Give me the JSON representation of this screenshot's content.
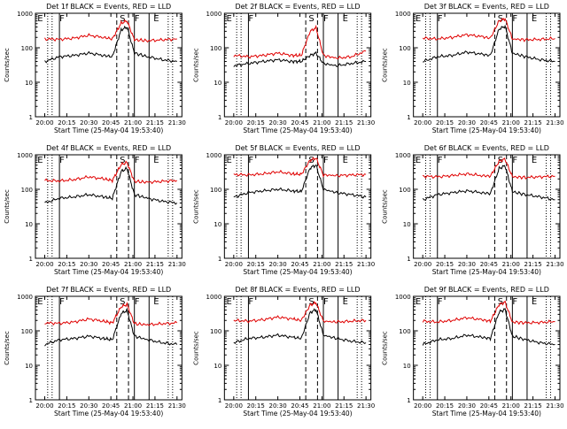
{
  "chart_data": [
    {
      "type": "line",
      "title": "Det 1f BLACK = Events, RED = LLD",
      "xlabel": "Start Time (25-May-04 19:53:40)",
      "ylabel": "Counts/sec",
      "x_ticks": [
        "20:00",
        "20:15",
        "20:30",
        "20:45",
        "21:00",
        "21:15",
        "21:30"
      ],
      "y_ticks": [
        "1",
        "10",
        "100",
        "1000"
      ],
      "scale_y": "log",
      "ylim": [
        1,
        1000
      ],
      "xlim": [
        "19:53:40",
        "21:33:20"
      ],
      "markers": [
        "E",
        "F",
        "S",
        "F",
        "E"
      ],
      "series": [
        {
          "name": "RED = LLD",
          "color": "#e00000",
          "x": [
            "20:00",
            "20:10",
            "20:20",
            "20:30",
            "20:40",
            "20:46",
            "20:52",
            "20:56",
            "21:01",
            "21:10",
            "21:20",
            "21:30"
          ],
          "y": [
            180,
            175,
            190,
            230,
            200,
            180,
            520,
            600,
            170,
            160,
            170,
            180
          ]
        },
        {
          "name": "BLACK = Events",
          "color": "#000000",
          "x": [
            "20:00",
            "20:10",
            "20:20",
            "20:30",
            "20:40",
            "20:46",
            "20:52",
            "20:56",
            "21:01",
            "21:10",
            "21:20",
            "21:30"
          ],
          "y": [
            40,
            55,
            60,
            70,
            60,
            55,
            330,
            400,
            70,
            55,
            45,
            40
          ]
        }
      ]
    },
    {
      "type": "line",
      "title": "Det 2f BLACK = Events, RED = LLD",
      "xlabel": "Start Time (25-May-04 19:53:40)",
      "ylabel": "Counts/sec",
      "x_ticks": [
        "20:00",
        "20:15",
        "20:30",
        "20:45",
        "21:00",
        "21:15",
        "21:30"
      ],
      "y_ticks": [
        "1",
        "10",
        "100",
        "1000"
      ],
      "scale_y": "log",
      "ylim": [
        1,
        1000
      ],
      "xlim": [
        "19:53:40",
        "21:33:20"
      ],
      "markers": [
        "E",
        "F",
        "S",
        "F",
        "E"
      ],
      "series": [
        {
          "name": "RED = LLD",
          "color": "#e00000",
          "x": [
            "20:00",
            "20:10",
            "20:20",
            "20:30",
            "20:40",
            "20:46",
            "20:52",
            "20:56",
            "21:01",
            "21:10",
            "21:20",
            "21:30"
          ],
          "y": [
            60,
            55,
            60,
            70,
            60,
            60,
            300,
            380,
            60,
            50,
            55,
            80
          ]
        },
        {
          "name": "BLACK = Events",
          "color": "#000000",
          "x": [
            "20:00",
            "20:10",
            "20:20",
            "20:30",
            "20:40",
            "20:46",
            "20:52",
            "20:56",
            "21:01",
            "21:10",
            "21:20",
            "21:30"
          ],
          "y": [
            30,
            35,
            40,
            45,
            40,
            40,
            60,
            70,
            35,
            30,
            35,
            40
          ]
        }
      ]
    },
    {
      "type": "line",
      "title": "Det 3f BLACK = Events, RED = LLD",
      "xlabel": "Start Time (25-May-04 19:53:40)",
      "ylabel": "Counts/sec",
      "x_ticks": [
        "20:00",
        "20:15",
        "20:30",
        "20:45",
        "21:00",
        "21:15",
        "21:30"
      ],
      "y_ticks": [
        "1",
        "10",
        "100",
        "1000"
      ],
      "scale_y": "log",
      "ylim": [
        1,
        1000
      ],
      "xlim": [
        "19:53:40",
        "21:33:20"
      ],
      "markers": [
        "E",
        "F",
        "S",
        "F",
        "E"
      ],
      "series": [
        {
          "name": "RED = LLD",
          "color": "#e00000",
          "x": [
            "20:00",
            "20:10",
            "20:20",
            "20:30",
            "20:40",
            "20:46",
            "20:52",
            "20:56",
            "21:01",
            "21:10",
            "21:20",
            "21:30"
          ],
          "y": [
            190,
            180,
            200,
            240,
            210,
            190,
            600,
            700,
            180,
            170,
            175,
            185
          ]
        },
        {
          "name": "BLACK = Events",
          "color": "#000000",
          "x": [
            "20:00",
            "20:10",
            "20:20",
            "20:30",
            "20:40",
            "20:46",
            "20:52",
            "20:56",
            "21:01",
            "21:10",
            "21:20",
            "21:30"
          ],
          "y": [
            40,
            55,
            60,
            75,
            65,
            60,
            350,
            420,
            70,
            55,
            45,
            40
          ]
        }
      ]
    },
    {
      "type": "line",
      "title": "Det 4f BLACK = Events, RED = LLD",
      "xlabel": "Start Time (25-May-04 19:53:40)",
      "ylabel": "Counts/sec",
      "x_ticks": [
        "20:00",
        "20:15",
        "20:30",
        "20:45",
        "21:00",
        "21:15",
        "21:30"
      ],
      "y_ticks": [
        "1",
        "10",
        "100",
        "1000"
      ],
      "scale_y": "log",
      "ylim": [
        1,
        1000
      ],
      "xlim": [
        "19:53:40",
        "21:33:20"
      ],
      "markers": [
        "E",
        "F",
        "S",
        "F",
        "E"
      ],
      "series": [
        {
          "name": "RED = LLD",
          "color": "#e00000",
          "x": [
            "20:00",
            "20:10",
            "20:20",
            "20:30",
            "20:40",
            "20:46",
            "20:52",
            "20:56",
            "21:01",
            "21:10",
            "21:20",
            "21:30"
          ],
          "y": [
            180,
            175,
            190,
            230,
            200,
            180,
            520,
            600,
            170,
            160,
            170,
            180
          ]
        },
        {
          "name": "BLACK = Events",
          "color": "#000000",
          "x": [
            "20:00",
            "20:10",
            "20:20",
            "20:30",
            "20:40",
            "20:46",
            "20:52",
            "20:56",
            "21:01",
            "21:10",
            "21:20",
            "21:30"
          ],
          "y": [
            40,
            55,
            60,
            70,
            60,
            55,
            330,
            400,
            70,
            55,
            45,
            40
          ]
        }
      ]
    },
    {
      "type": "line",
      "title": "Det 5f BLACK = Events, RED = LLD",
      "xlabel": "Start Time (25-May-04 19:53:40)",
      "ylabel": "Counts/sec",
      "x_ticks": [
        "20:00",
        "20:15",
        "20:30",
        "20:45",
        "21:00",
        "21:15",
        "21:30"
      ],
      "y_ticks": [
        "1",
        "10",
        "100",
        "1000"
      ],
      "scale_y": "log",
      "ylim": [
        1,
        1000
      ],
      "xlim": [
        "19:53:40",
        "21:33:20"
      ],
      "markers": [
        "E",
        "F",
        "S",
        "F",
        "E"
      ],
      "series": [
        {
          "name": "RED = LLD",
          "color": "#e00000",
          "x": [
            "20:00",
            "20:10",
            "20:20",
            "20:30",
            "20:40",
            "20:46",
            "20:52",
            "20:56",
            "21:01",
            "21:10",
            "21:20",
            "21:30"
          ],
          "y": [
            270,
            260,
            280,
            320,
            280,
            270,
            700,
            800,
            260,
            250,
            260,
            270
          ]
        },
        {
          "name": "BLACK = Events",
          "color": "#000000",
          "x": [
            "20:00",
            "20:10",
            "20:20",
            "20:30",
            "20:40",
            "20:46",
            "20:52",
            "20:56",
            "21:01",
            "21:10",
            "21:20",
            "21:30"
          ],
          "y": [
            60,
            80,
            90,
            100,
            90,
            85,
            420,
            500,
            100,
            80,
            70,
            60
          ]
        }
      ]
    },
    {
      "type": "line",
      "title": "Det 6f BLACK = Events, RED = LLD",
      "xlabel": "Start Time (25-May-04 19:53:40)",
      "ylabel": "Counts/sec",
      "x_ticks": [
        "20:00",
        "20:15",
        "20:30",
        "20:45",
        "21:00",
        "21:15",
        "21:30"
      ],
      "y_ticks": [
        "1",
        "10",
        "100",
        "1000"
      ],
      "scale_y": "log",
      "ylim": [
        1,
        1000
      ],
      "xlim": [
        "19:53:40",
        "21:33:20"
      ],
      "markers": [
        "E",
        "F",
        "S",
        "F",
        "E"
      ],
      "series": [
        {
          "name": "RED = LLD",
          "color": "#e00000",
          "x": [
            "20:00",
            "20:10",
            "20:20",
            "20:30",
            "20:40",
            "20:46",
            "20:52",
            "20:56",
            "21:01",
            "21:10",
            "21:20",
            "21:30"
          ],
          "y": [
            240,
            230,
            250,
            280,
            250,
            240,
            650,
            750,
            230,
            220,
            230,
            240
          ]
        },
        {
          "name": "BLACK = Events",
          "color": "#000000",
          "x": [
            "20:00",
            "20:10",
            "20:20",
            "20:30",
            "20:40",
            "20:46",
            "20:52",
            "20:56",
            "21:01",
            "21:10",
            "21:20",
            "21:30"
          ],
          "y": [
            50,
            70,
            80,
            90,
            80,
            75,
            400,
            480,
            85,
            70,
            60,
            50
          ]
        }
      ]
    },
    {
      "type": "line",
      "title": "Det 7f BLACK = Events, RED = LLD",
      "xlabel": "Start Time (25-May-04 19:53:40)",
      "ylabel": "Counts/sec",
      "x_ticks": [
        "20:00",
        "20:15",
        "20:30",
        "20:45",
        "21:00",
        "21:15",
        "21:30"
      ],
      "y_ticks": [
        "1",
        "10",
        "100",
        "1000"
      ],
      "scale_y": "log",
      "ylim": [
        1,
        1000
      ],
      "xlim": [
        "19:53:40",
        "21:33:20"
      ],
      "markers": [
        "E",
        "F",
        "S",
        "F",
        "E"
      ],
      "series": [
        {
          "name": "RED = LLD",
          "color": "#e00000",
          "x": [
            "20:00",
            "20:10",
            "20:20",
            "20:30",
            "20:40",
            "20:46",
            "20:52",
            "20:56",
            "21:01",
            "21:10",
            "21:20",
            "21:30"
          ],
          "y": [
            170,
            165,
            180,
            220,
            190,
            170,
            500,
            580,
            160,
            150,
            160,
            170
          ]
        },
        {
          "name": "BLACK = Events",
          "color": "#000000",
          "x": [
            "20:00",
            "20:10",
            "20:20",
            "20:30",
            "20:40",
            "20:46",
            "20:52",
            "20:56",
            "21:01",
            "21:10",
            "21:20",
            "21:30"
          ],
          "y": [
            40,
            55,
            60,
            70,
            60,
            55,
            320,
            390,
            70,
            55,
            45,
            40
          ]
        }
      ]
    },
    {
      "type": "line",
      "title": "Det 8f BLACK = Events, RED = LLD",
      "xlabel": "Start Time (25-May-04 19:53:40)",
      "ylabel": "Counts/sec",
      "x_ticks": [
        "20:00",
        "20:15",
        "20:30",
        "20:45",
        "21:00",
        "21:15",
        "21:30"
      ],
      "y_ticks": [
        "1",
        "10",
        "100",
        "1000"
      ],
      "scale_y": "log",
      "ylim": [
        1,
        1000
      ],
      "xlim": [
        "19:53:40",
        "21:33:20"
      ],
      "markers": [
        "E",
        "F",
        "S",
        "F",
        "E"
      ],
      "series": [
        {
          "name": "RED = LLD",
          "color": "#e00000",
          "x": [
            "20:00",
            "20:10",
            "20:20",
            "20:30",
            "20:40",
            "20:46",
            "20:52",
            "20:56",
            "21:01",
            "21:10",
            "21:20",
            "21:30"
          ],
          "y": [
            200,
            190,
            210,
            250,
            220,
            200,
            560,
            650,
            190,
            180,
            190,
            200
          ]
        },
        {
          "name": "BLACK = Events",
          "color": "#000000",
          "x": [
            "20:00",
            "20:10",
            "20:20",
            "20:30",
            "20:40",
            "20:46",
            "20:52",
            "20:56",
            "21:01",
            "21:10",
            "21:20",
            "21:30"
          ],
          "y": [
            45,
            60,
            65,
            75,
            65,
            60,
            340,
            410,
            75,
            60,
            50,
            45
          ]
        }
      ]
    },
    {
      "type": "line",
      "title": "Det 9f BLACK = Events, RED = LLD",
      "xlabel": "Start Time (25-May-04 19:53:40)",
      "ylabel": "Counts/sec",
      "x_ticks": [
        "20:00",
        "20:15",
        "20:30",
        "20:45",
        "21:00",
        "21:15",
        "21:30"
      ],
      "y_ticks": [
        "1",
        "10",
        "100",
        "1000"
      ],
      "scale_y": "log",
      "ylim": [
        1,
        1000
      ],
      "xlim": [
        "19:53:40",
        "21:33:20"
      ],
      "markers": [
        "E",
        "F",
        "S",
        "F",
        "E"
      ],
      "series": [
        {
          "name": "RED = LLD",
          "color": "#e00000",
          "x": [
            "20:00",
            "20:10",
            "20:20",
            "20:30",
            "20:40",
            "20:46",
            "20:52",
            "20:56",
            "21:01",
            "21:10",
            "21:20",
            "21:30"
          ],
          "y": [
            190,
            180,
            200,
            240,
            210,
            190,
            580,
            680,
            180,
            170,
            175,
            185
          ]
        },
        {
          "name": "BLACK = Events",
          "color": "#000000",
          "x": [
            "20:00",
            "20:10",
            "20:20",
            "20:30",
            "20:40",
            "20:46",
            "20:52",
            "20:56",
            "21:01",
            "21:10",
            "21:20",
            "21:30"
          ],
          "y": [
            40,
            55,
            60,
            75,
            65,
            60,
            350,
            420,
            70,
            55,
            45,
            40
          ]
        }
      ]
    }
  ],
  "vertical_lines": {
    "solid": [
      "20:10",
      "21:01",
      "21:11"
    ],
    "dashed": [
      "20:49",
      "20:57"
    ],
    "dotted": [
      "20:02",
      "20:05",
      "21:24",
      "21:27"
    ]
  }
}
